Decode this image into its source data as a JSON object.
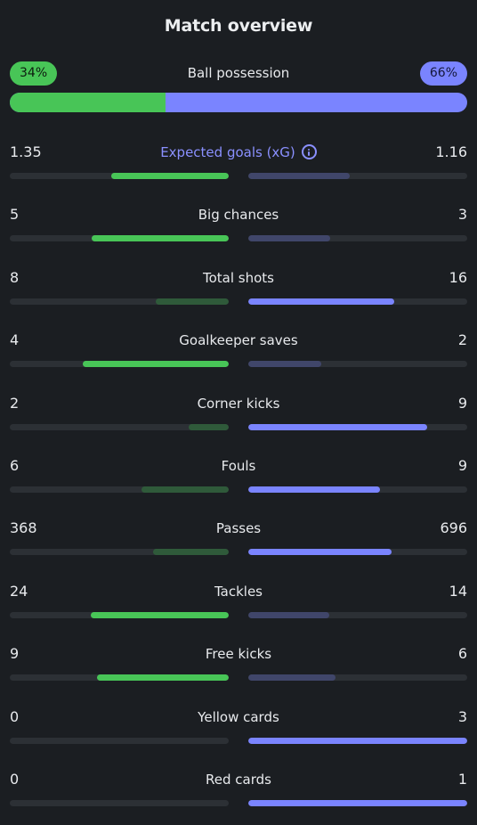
{
  "title": "Match overview",
  "possession": {
    "label": "Ball possession",
    "home": "34%",
    "away": "66%",
    "home_fraction": 0.34,
    "colors": {
      "home": "#48c557",
      "away": "#7a84ff"
    }
  },
  "stats": [
    {
      "name": "Expected goals (xG)",
      "home": "1.35",
      "away": "1.16",
      "home_v": 1.35,
      "away_v": 1.16,
      "accent": true,
      "info_icon": "info-icon"
    },
    {
      "name": "Big chances",
      "home": "5",
      "away": "3",
      "home_v": 5,
      "away_v": 3
    },
    {
      "name": "Total shots",
      "home": "8",
      "away": "16",
      "home_v": 8,
      "away_v": 16
    },
    {
      "name": "Goalkeeper saves",
      "home": "4",
      "away": "2",
      "home_v": 4,
      "away_v": 2
    },
    {
      "name": "Corner kicks",
      "home": "2",
      "away": "9",
      "home_v": 2,
      "away_v": 9
    },
    {
      "name": "Fouls",
      "home": "6",
      "away": "9",
      "home_v": 6,
      "away_v": 9
    },
    {
      "name": "Passes",
      "home": "368",
      "away": "696",
      "home_v": 368,
      "away_v": 696
    },
    {
      "name": "Tackles",
      "home": "24",
      "away": "14",
      "home_v": 24,
      "away_v": 14
    },
    {
      "name": "Free kicks",
      "home": "9",
      "away": "6",
      "home_v": 9,
      "away_v": 6
    },
    {
      "name": "Yellow cards",
      "home": "0",
      "away": "3",
      "home_v": 0,
      "away_v": 3
    },
    {
      "name": "Red cards",
      "home": "0",
      "away": "1",
      "home_v": 0,
      "away_v": 1
    }
  ]
}
